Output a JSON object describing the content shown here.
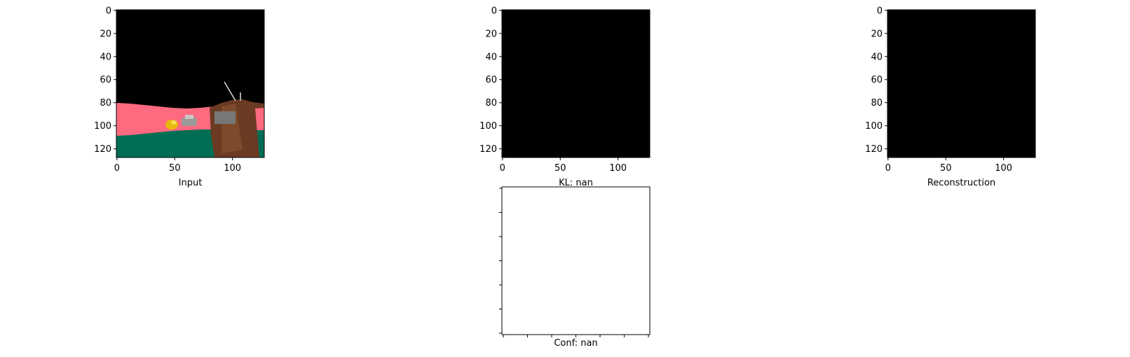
{
  "chart_data": [
    {
      "type": "image",
      "id": "input",
      "caption": "Input",
      "image_size": [
        128,
        128
      ],
      "xticks": [
        0,
        50,
        100
      ],
      "yticks": [
        0,
        20,
        40,
        60,
        80,
        100,
        120
      ],
      "xlim": [
        0,
        128
      ],
      "ylim": [
        128,
        0
      ],
      "content": "rendered scene: black sky, pink ground band, green foreground, brown structure with antenna, yellow and grey objects",
      "colors": {
        "sky": "#000000",
        "pink": "#ff6a80",
        "green": "#006e54",
        "brown": "#6b3a22",
        "yellow": "#e8b80a",
        "grey": "#7a7a7a"
      }
    },
    {
      "type": "image",
      "id": "kl",
      "caption": "KL: nan",
      "image_size": [
        128,
        128
      ],
      "xticks": [
        0,
        50,
        100
      ],
      "yticks": [
        0,
        20,
        40,
        60,
        80,
        100,
        120
      ],
      "xlim": [
        0,
        128
      ],
      "ylim": [
        128,
        0
      ],
      "fill": "#000000"
    },
    {
      "type": "image",
      "id": "reconstruction",
      "caption": "Reconstruction",
      "image_size": [
        128,
        128
      ],
      "xticks": [
        0,
        50,
        100
      ],
      "yticks": [
        0,
        20,
        40,
        60,
        80,
        100,
        120
      ],
      "xlim": [
        0,
        128
      ],
      "ylim": [
        128,
        0
      ],
      "fill": "#000000"
    },
    {
      "type": "image",
      "id": "conf",
      "caption": "Conf: nan",
      "tick_labels": false,
      "xtick_count": 7,
      "ytick_count": 7,
      "fill": "#ffffff"
    }
  ]
}
